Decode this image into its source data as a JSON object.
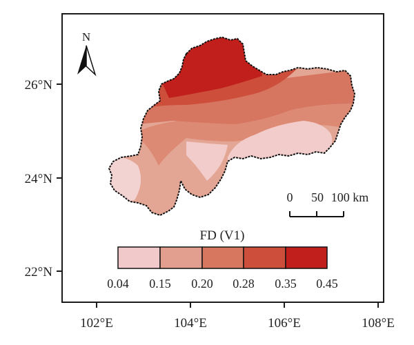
{
  "map": {
    "north_label": "N",
    "legend": {
      "title": "FD (V1)",
      "breaks": [
        "0.04",
        "0.15",
        "0.20",
        "0.28",
        "0.35",
        "0.45"
      ],
      "colors": [
        "#f2c9cb",
        "#e29e8f",
        "#d7775f",
        "#cd4e3b",
        "#c01f1b"
      ]
    },
    "scale_bar": {
      "labels": [
        "0",
        "50",
        "100 km"
      ]
    },
    "axes": {
      "x_ticks": [
        "102°E",
        "104°E",
        "106°E",
        "108°E"
      ],
      "y_ticks": [
        "26°N",
        "24°N",
        "22°N"
      ]
    }
  }
}
